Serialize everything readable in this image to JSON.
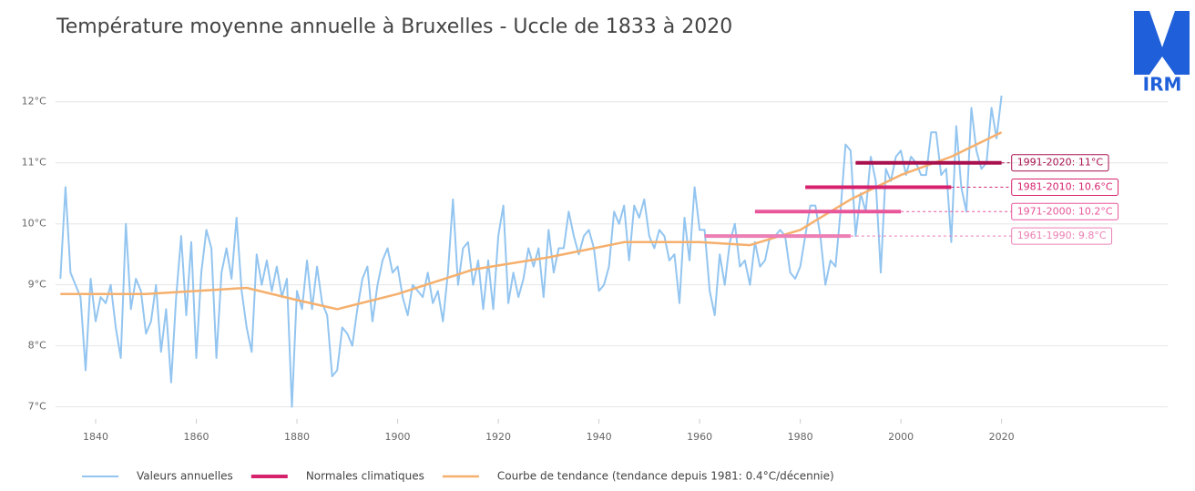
{
  "chart_data": {
    "type": "line",
    "title": "Température moyenne annuelle à Bruxelles - Uccle de 1833 à 2020",
    "logo": "IRM",
    "x": [
      1833,
      1834,
      1835,
      1836,
      1837,
      1838,
      1839,
      1840,
      1841,
      1842,
      1843,
      1844,
      1845,
      1846,
      1847,
      1848,
      1849,
      1850,
      1851,
      1852,
      1853,
      1854,
      1855,
      1856,
      1857,
      1858,
      1859,
      1860,
      1861,
      1862,
      1863,
      1864,
      1865,
      1866,
      1867,
      1868,
      1869,
      1870,
      1871,
      1872,
      1873,
      1874,
      1875,
      1876,
      1877,
      1878,
      1879,
      1880,
      1881,
      1882,
      1883,
      1884,
      1885,
      1886,
      1887,
      1888,
      1889,
      1890,
      1891,
      1892,
      1893,
      1894,
      1895,
      1896,
      1897,
      1898,
      1899,
      1900,
      1901,
      1902,
      1903,
      1904,
      1905,
      1906,
      1907,
      1908,
      1909,
      1910,
      1911,
      1912,
      1913,
      1914,
      1915,
      1916,
      1917,
      1918,
      1919,
      1920,
      1921,
      1922,
      1923,
      1924,
      1925,
      1926,
      1927,
      1928,
      1929,
      1930,
      1931,
      1932,
      1933,
      1934,
      1935,
      1936,
      1937,
      1938,
      1939,
      1940,
      1941,
      1942,
      1943,
      1944,
      1945,
      1946,
      1947,
      1948,
      1949,
      1950,
      1951,
      1952,
      1953,
      1954,
      1955,
      1956,
      1957,
      1958,
      1959,
      1960,
      1961,
      1962,
      1963,
      1964,
      1965,
      1966,
      1967,
      1968,
      1969,
      1970,
      1971,
      1972,
      1973,
      1974,
      1975,
      1976,
      1977,
      1978,
      1979,
      1980,
      1981,
      1982,
      1983,
      1984,
      1985,
      1986,
      1987,
      1988,
      1989,
      1990,
      1991,
      1992,
      1993,
      1994,
      1995,
      1996,
      1997,
      1998,
      1999,
      2000,
      2001,
      2002,
      2003,
      2004,
      2005,
      2006,
      2007,
      2008,
      2009,
      2010,
      2011,
      2012,
      2013,
      2014,
      2015,
      2016,
      2017,
      2018,
      2019,
      2020
    ],
    "series": [
      {
        "name": "Valeurs annuelles",
        "color": "#93c5f0",
        "values": [
          9.1,
          10.6,
          9.2,
          9.0,
          8.8,
          7.6,
          9.1,
          8.4,
          8.8,
          8.7,
          9.0,
          8.3,
          7.8,
          10.0,
          8.6,
          9.1,
          8.9,
          8.2,
          8.4,
          9.0,
          7.9,
          8.6,
          7.4,
          8.8,
          9.8,
          8.5,
          9.7,
          7.8,
          9.2,
          9.9,
          9.6,
          7.8,
          9.2,
          9.6,
          9.1,
          10.1,
          8.9,
          8.3,
          7.9,
          9.5,
          9.0,
          9.4,
          8.9,
          9.3,
          8.8,
          9.1,
          7.0,
          8.9,
          8.6,
          9.4,
          8.6,
          9.3,
          8.7,
          8.5,
          7.5,
          7.6,
          8.3,
          8.2,
          8.0,
          8.6,
          9.1,
          9.3,
          8.4,
          9.0,
          9.4,
          9.6,
          9.2,
          9.3,
          8.8,
          8.5,
          9.0,
          8.9,
          8.8,
          9.2,
          8.7,
          8.9,
          8.4,
          9.2,
          10.4,
          9.0,
          9.6,
          9.7,
          9.0,
          9.4,
          8.6,
          9.4,
          8.6,
          9.8,
          10.3,
          8.7,
          9.2,
          8.8,
          9.1,
          9.6,
          9.3,
          9.6,
          8.8,
          9.9,
          9.2,
          9.6,
          9.6,
          10.2,
          9.8,
          9.5,
          9.8,
          9.9,
          9.6,
          8.9,
          9.0,
          9.3,
          10.2,
          10.0,
          10.3,
          9.4,
          10.3,
          10.1,
          10.4,
          9.8,
          9.6,
          9.9,
          9.8,
          9.4,
          9.5,
          8.7,
          10.1,
          9.4,
          10.6,
          9.9,
          9.9,
          8.9,
          8.5,
          9.5,
          9.0,
          9.7,
          10.0,
          9.3,
          9.4,
          9.0,
          9.7,
          9.3,
          9.4,
          9.8,
          9.8,
          9.9,
          9.8,
          9.2,
          9.1,
          9.3,
          9.8,
          10.3,
          10.3,
          9.8,
          9.0,
          9.4,
          9.3,
          10.2,
          11.3,
          11.2,
          9.8,
          10.5,
          10.2,
          11.1,
          10.7,
          9.2,
          10.9,
          10.7,
          11.1,
          11.2,
          10.8,
          11.1,
          11.0,
          10.8,
          10.8,
          11.5,
          11.5,
          10.8,
          10.9,
          9.7,
          11.6,
          10.6,
          10.2,
          11.9,
          11.2,
          10.9,
          11.0,
          11.9,
          11.4,
          12.1
        ]
      },
      {
        "name": "Courbe de tendance (tendance depuis 1981: 0.4°C/décennie)",
        "color": "#f5b06e",
        "x": [
          1833,
          1850,
          1870,
          1880,
          1888,
          1900,
          1915,
          1930,
          1945,
          1960,
          1970,
          1980,
          1990,
          2000,
          2010,
          2020
        ],
        "values": [
          8.85,
          8.85,
          8.95,
          8.75,
          8.6,
          8.85,
          9.25,
          9.45,
          9.7,
          9.7,
          9.65,
          9.9,
          10.4,
          10.8,
          11.1,
          11.5
        ]
      }
    ],
    "normals": {
      "name": "Normales climatiques",
      "color": "#d6226d",
      "items": [
        {
          "label": "1961-1990: 9.8°C",
          "start": 1961,
          "end": 1990,
          "value": 9.8,
          "color": "#ec7fb4"
        },
        {
          "label": "1971-2000: 10.2°C",
          "start": 1971,
          "end": 2000,
          "value": 10.2,
          "color": "#e8569a"
        },
        {
          "label": "1981-2010: 10.6°C",
          "start": 1981,
          "end": 2010,
          "value": 10.6,
          "color": "#d6226d"
        },
        {
          "label": "1991-2020: 11°C",
          "start": 1991,
          "end": 2020,
          "value": 11,
          "color": "#a8104e"
        }
      ]
    },
    "xlim": [
      1832,
      2053
    ],
    "ylim": [
      6.8,
      12.25
    ],
    "xticks": [
      1840,
      1860,
      1880,
      1900,
      1920,
      1940,
      1960,
      1980,
      2000,
      2020
    ],
    "yticks": [
      {
        "value": 7,
        "label": "7°C"
      },
      {
        "value": 8,
        "label": "8°C"
      },
      {
        "value": 9,
        "label": "9°C"
      },
      {
        "value": 10,
        "label": "10°C"
      },
      {
        "value": 11,
        "label": "11°C"
      },
      {
        "value": 12,
        "label": "12°C"
      }
    ],
    "grid": true
  }
}
